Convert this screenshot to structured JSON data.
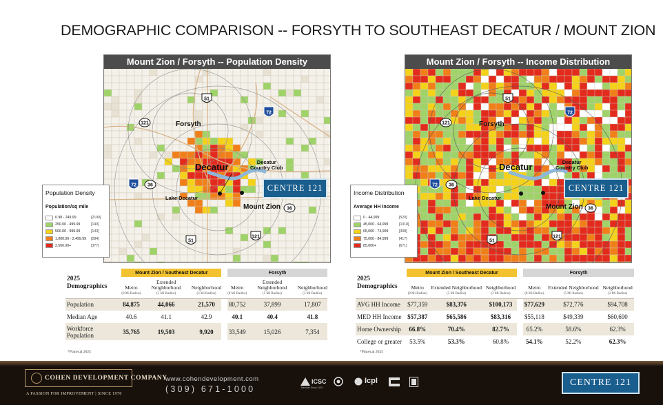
{
  "page": {
    "title": "DEMOGRAPHIC COMPARISON -- FORSYTH TO SOUTHEAST DECATUR / MOUNT ZION"
  },
  "maps": {
    "left": {
      "title": "Mount Zion / Forsyth -- Population Density",
      "legend_title": "Population Density",
      "legend_subtitle": "Population/sq mile",
      "legend": [
        {
          "range": "0.98 - 249.99",
          "count": "[2190]",
          "color": "#ffffff"
        },
        {
          "range": "250.00 - 499.99",
          "count": "[140]",
          "color": "#9fd36a"
        },
        {
          "range": "500.00 - 999.99",
          "count": "[143]",
          "color": "#f4d21a"
        },
        {
          "range": "1,000.00 - 2,499.99",
          "count": "[284]",
          "color": "#f07f1a"
        },
        {
          "range": "2,500.00+",
          "count": "[377]",
          "color": "#e32b1d"
        }
      ]
    },
    "right": {
      "title": "Mount Zion / Forsyth -- Income Distribution",
      "legend_title": "Income Distribution",
      "legend_subtitle": "Average HH Income",
      "legend": [
        {
          "range": "0 - 44,999",
          "count": "[520]",
          "color": "#ffffff"
        },
        {
          "range": "45,000 - 64,999",
          "count": "[1018]",
          "color": "#9fd36a"
        },
        {
          "range": "65,000 - 74,999",
          "count": "[308]",
          "color": "#f4d21a"
        },
        {
          "range": "75,000 - 84,999",
          "count": "[417]",
          "color": "#f07f1a"
        },
        {
          "range": "85,000+",
          "count": "[671]",
          "color": "#e32b1d"
        }
      ]
    },
    "places": {
      "forsyth": "Forsyth",
      "decatur": "Decatur",
      "country_club": "Decatur\nCountry Club",
      "lake": "Lake Decatur",
      "mount_zion": "Mount Zion"
    },
    "routes": [
      "51",
      "72",
      "121",
      "36",
      "51",
      "121",
      "72",
      "36"
    ],
    "centre_label": "CENTRE 121"
  },
  "tables": {
    "left": {
      "year": "2025",
      "label": "Demographics",
      "group1": "Mount Zion / Southeast Decatur",
      "group2": "Forsyth",
      "cols": [
        {
          "name": "Metro",
          "sub": "(8 Mi Radius)"
        },
        {
          "name": "Extended Neighborhood",
          "sub": "(5 Mi Radius)"
        },
        {
          "name": "Neighborhood",
          "sub": "(3 Mi Radius)"
        },
        {
          "name": "Metro",
          "sub": "(8 Mi Radius)"
        },
        {
          "name": "Extended Neighborhood",
          "sub": "(5 Mi Radius)"
        },
        {
          "name": "Neighborhood",
          "sub": "(3 Mi Radius)"
        }
      ],
      "rows": [
        {
          "label": "Population",
          "values": [
            "84,875",
            "44,066",
            "21,570",
            "80,752",
            "37,899",
            "17,807"
          ]
        },
        {
          "label": "Median Age",
          "values": [
            "40.6",
            "41.1",
            "42.9",
            "40.1",
            "40.4",
            "41.8"
          ]
        },
        {
          "label": "Workforce Population",
          "values": [
            "35,765",
            "19,503",
            "9,920",
            "33,549",
            "15,026",
            "7,354"
          ]
        }
      ],
      "footnote": "*Placer.ai 2025"
    },
    "right": {
      "year": "2025",
      "label": "Demographics",
      "group1": "Mount Zion / Southeast Decatur",
      "group2": "Forsyth",
      "cols": [
        {
          "name": "Metro",
          "sub": "(8 Mi Radius)"
        },
        {
          "name": "Extended Neighborhood",
          "sub": "(5 Mi Radius)"
        },
        {
          "name": "Neighborhood",
          "sub": "(3 Mi Radius)"
        },
        {
          "name": "Metro",
          "sub": "(8 Mi Radius)"
        },
        {
          "name": "Extended Neighborhood",
          "sub": "(5 Mi Radius)"
        },
        {
          "name": "Neighborhood",
          "sub": "(3 Mi Radius)"
        }
      ],
      "rows": [
        {
          "label": "AVG HH Income",
          "values": [
            "$77,359",
            "$83,376",
            "$100,173",
            "$77,629",
            "$72,776",
            "$94,708"
          ]
        },
        {
          "label": "MED HH Income",
          "values": [
            "$57,387",
            "$65,586",
            "$83,316",
            "$55,118",
            "$49,339",
            "$60,690"
          ]
        },
        {
          "label": "Home Ownership",
          "values": [
            "66.8%",
            "70.4%",
            "82.7%",
            "65.2%",
            "58.6%",
            "62.3%"
          ]
        },
        {
          "label": "College or greater",
          "values": [
            "53.5%",
            "53.3%",
            "60.8%",
            "54.1%",
            "52.2%",
            "62.3%"
          ]
        }
      ],
      "footnote": "*Placer.ai 2025"
    }
  },
  "footer": {
    "company": "COHEN DEVELOPMENT COMPANY",
    "tagline": "A PASSION FOR IMPROVEMENT  |  SINCE 1970",
    "website": "www.cohendevelopment.com",
    "phone": "(309) 671-1000",
    "icsc": "ICSC",
    "icsc_sub": "Member Since 1970",
    "ccim": "IcpI",
    "centre_label": "CENTRE 121"
  }
}
